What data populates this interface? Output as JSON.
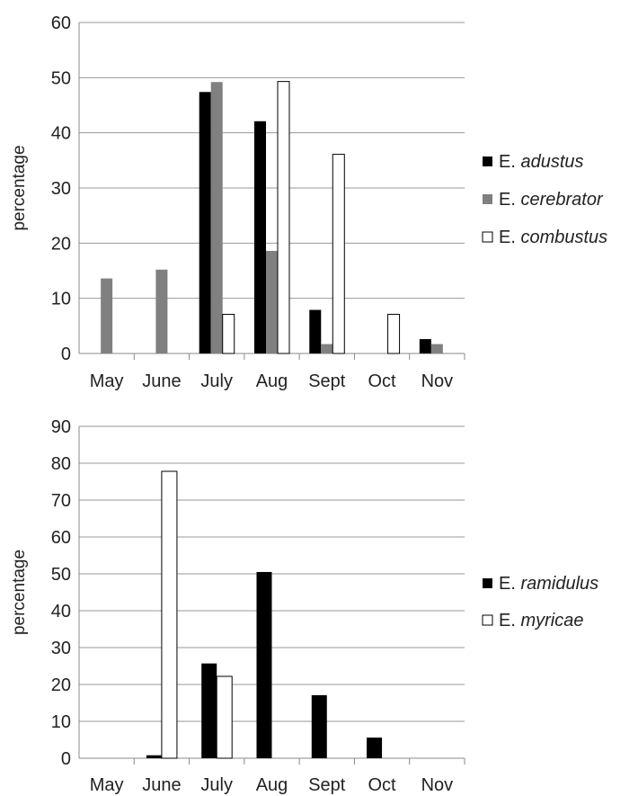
{
  "chart_data": [
    {
      "type": "bar",
      "ylabel": "percentage",
      "ylim": [
        0,
        60
      ],
      "yticks": [
        0,
        10,
        20,
        30,
        40,
        50,
        60
      ],
      "grid": true,
      "legend_position": "right",
      "categories": [
        "May",
        "June",
        "July",
        "Aug",
        "Sept",
        "Oct",
        "Nov"
      ],
      "series": [
        {
          "name_prefix": "E.",
          "name_species": "adustus",
          "name": "E. adustus",
          "color": "#000000",
          "values": [
            0,
            0,
            47.4,
            42.1,
            7.9,
            0,
            2.6
          ]
        },
        {
          "name_prefix": "E.",
          "name_species": "cerebrator",
          "name": "E. cerebrator",
          "color": "#808080",
          "values": [
            13.6,
            15.2,
            49.2,
            18.6,
            1.7,
            0,
            1.7
          ]
        },
        {
          "name_prefix": "E.",
          "name_species": "combustus",
          "name": "E. combustus",
          "color": "#ffffff",
          "values": [
            0,
            0,
            7.1,
            49.3,
            36.1,
            7.1,
            0
          ]
        }
      ]
    },
    {
      "type": "bar",
      "ylabel": "percentage",
      "ylim": [
        0,
        90
      ],
      "yticks": [
        0,
        10,
        20,
        30,
        40,
        50,
        60,
        70,
        80,
        90
      ],
      "grid": true,
      "legend_position": "right",
      "categories": [
        "May",
        "June",
        "July",
        "Aug",
        "Sept",
        "Oct",
        "Nov"
      ],
      "series": [
        {
          "name_prefix": "E.",
          "name_species": "ramidulus",
          "name": "E. ramidulus",
          "color": "#000000",
          "values": [
            0,
            0.8,
            25.7,
            50.5,
            17.1,
            5.6,
            0
          ]
        },
        {
          "name_prefix": "E.",
          "name_species": "myricae",
          "name": "E. myricae",
          "color": "#ffffff",
          "values": [
            0,
            77.8,
            22.2,
            0,
            0,
            0,
            0
          ]
        }
      ]
    }
  ]
}
